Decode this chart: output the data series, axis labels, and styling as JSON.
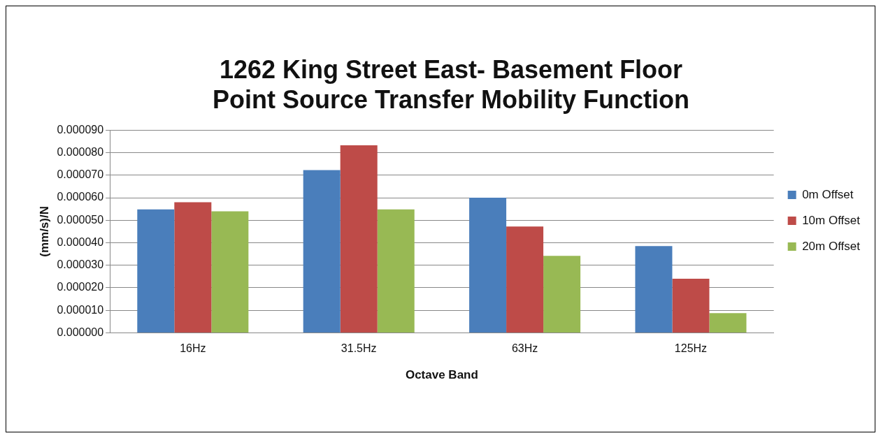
{
  "chart_data": {
    "type": "bar",
    "title": [
      "1262 King Street East- Basement Floor",
      "Point Source Transfer Mobility Function"
    ],
    "xlabel": "Octave Band",
    "ylabel": "(mm/s)/N",
    "categories": [
      "16Hz",
      "31.5Hz",
      "63Hz",
      "125Hz"
    ],
    "series": [
      {
        "name": "0m Offset",
        "color": "#4a7ebb",
        "values": [
          5.48e-05,
          7.23e-05,
          6e-05,
          3.85e-05
        ]
      },
      {
        "name": "10m Offset",
        "color": "#be4b48",
        "values": [
          5.8e-05,
          8.33e-05,
          4.72e-05,
          2.4e-05
        ]
      },
      {
        "name": "20m Offset",
        "color": "#98b954",
        "values": [
          5.4e-05,
          5.48e-05,
          3.42e-05,
          8.7e-06
        ]
      }
    ],
    "ylim": [
      0,
      9e-05
    ],
    "yticks": [
      {
        "value": 0,
        "label": "0.000000"
      },
      {
        "value": 1e-05,
        "label": "0.000010"
      },
      {
        "value": 2e-05,
        "label": "0.000020"
      },
      {
        "value": 3e-05,
        "label": "0.000030"
      },
      {
        "value": 4e-05,
        "label": "0.000040"
      },
      {
        "value": 5e-05,
        "label": "0.000050"
      },
      {
        "value": 6e-05,
        "label": "0.000060"
      },
      {
        "value": 7e-05,
        "label": "0.000070"
      },
      {
        "value": 8e-05,
        "label": "0.000080"
      },
      {
        "value": 9e-05,
        "label": "0.000090"
      }
    ],
    "grid": "y",
    "legend": "right"
  }
}
